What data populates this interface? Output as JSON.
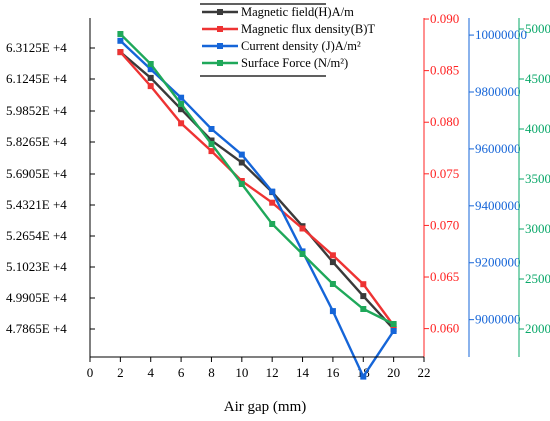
{
  "chart_data": {
    "type": "line",
    "xlabel": "Air gap (mm)",
    "xlim": [
      0,
      22
    ],
    "x_ticks": [
      "0",
      "2",
      "4",
      "6",
      "8",
      "10",
      "12",
      "14",
      "16",
      "18",
      "20",
      "22"
    ],
    "x": [
      2,
      4,
      6,
      8,
      10,
      12,
      14,
      16,
      18,
      20
    ],
    "axes": {
      "left": {
        "ticks": [
          "6.3125E +4",
          "6.1245E +4",
          "5.9852E +4",
          "5.8265E +4",
          "5.6905E +4",
          "5.4321E +4",
          "5.2654E +4",
          "5.1023E +4",
          "4.9905E +4",
          "4.7865E +4"
        ],
        "tick_color": "#000000"
      },
      "right1": {
        "ticks": [
          "0.090",
          "0.085",
          "0.080",
          "0.075",
          "0.070",
          "0.065",
          "0.060"
        ],
        "ylim": [
          0.0588,
          0.0901
        ],
        "color": "#ff2222"
      },
      "right2": {
        "ticks": [
          "10000000",
          "9800000",
          "9600000",
          "9400000",
          "9200000",
          "9000000"
        ],
        "ylim": [
          8925000,
          10060000
        ],
        "color": "#1565d8"
      },
      "right3": {
        "ticks": [
          "5000",
          "4500",
          "4000",
          "3500",
          "3000",
          "2500",
          "2000"
        ],
        "ylim": [
          1880,
          5110
        ],
        "color": "#0aa86a"
      }
    },
    "series": [
      {
        "name": "Magnetic field(H)A/m",
        "color": "#3a3a3a",
        "axis": "left",
        "values": [
          62900,
          61500,
          59800,
          58100,
          56905,
          55300,
          53450,
          51500,
          49650,
          47865
        ]
      },
      {
        "name": "Magnetic flux density(B)T",
        "color": "#ee3333",
        "axis": "right1",
        "values": [
          0.0868,
          0.0835,
          0.0799,
          0.0772,
          0.0743,
          0.0722,
          0.0697,
          0.0671,
          0.0643,
          0.0603
        ]
      },
      {
        "name": "Current density (J)A/m²",
        "color": "#1565d8",
        "axis": "right2",
        "values": [
          9980000,
          9880000,
          9780000,
          9670000,
          9580000,
          9450000,
          9240000,
          9030000,
          8800000,
          8960000
        ]
      },
      {
        "name": "Surface Force (N/m²)",
        "color": "#1fa85a",
        "axis": "right3",
        "values": [
          4950,
          4650,
          4250,
          3850,
          3450,
          3050,
          2750,
          2450,
          2200,
          2050
        ]
      }
    ],
    "legend": "top-center"
  }
}
